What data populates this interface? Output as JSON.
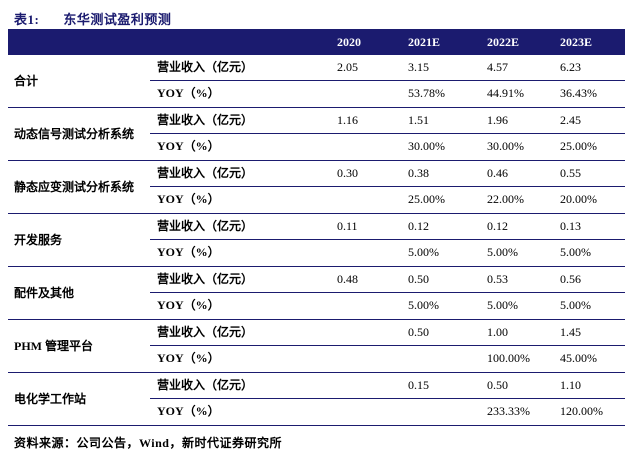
{
  "title": {
    "label": "表1:",
    "text": "东华测试盈利预测"
  },
  "table": {
    "columns": [
      "2020",
      "2021E",
      "2022E",
      "2023E"
    ],
    "groups": [
      {
        "category": "合计",
        "rows": [
          {
            "metric": "营业收入（亿元）",
            "values": [
              "2.05",
              "3.15",
              "4.57",
              "6.23"
            ]
          },
          {
            "metric": "YOY（%）",
            "values": [
              "",
              "53.78%",
              "44.91%",
              "36.43%"
            ]
          }
        ]
      },
      {
        "category": "动态信号测试分析系统",
        "rows": [
          {
            "metric": "营业收入（亿元）",
            "values": [
              "1.16",
              "1.51",
              "1.96",
              "2.45"
            ]
          },
          {
            "metric": "YOY（%）",
            "values": [
              "",
              "30.00%",
              "30.00%",
              "25.00%"
            ]
          }
        ]
      },
      {
        "category": "静态应变测试分析系统",
        "rows": [
          {
            "metric": "营业收入（亿元）",
            "values": [
              "0.30",
              "0.38",
              "0.46",
              "0.55"
            ]
          },
          {
            "metric": "YOY（%）",
            "values": [
              "",
              "25.00%",
              "22.00%",
              "20.00%"
            ]
          }
        ]
      },
      {
        "category": "开发服务",
        "rows": [
          {
            "metric": "营业收入（亿元）",
            "values": [
              "0.11",
              "0.12",
              "0.12",
              "0.13"
            ]
          },
          {
            "metric": "YOY（%）",
            "values": [
              "",
              "5.00%",
              "5.00%",
              "5.00%"
            ]
          }
        ]
      },
      {
        "category": "配件及其他",
        "rows": [
          {
            "metric": "营业收入（亿元）",
            "values": [
              "0.48",
              "0.50",
              "0.53",
              "0.56"
            ]
          },
          {
            "metric": "YOY（%）",
            "values": [
              "",
              "5.00%",
              "5.00%",
              "5.00%"
            ]
          }
        ]
      },
      {
        "category": "PHM 管理平台",
        "rows": [
          {
            "metric": "营业收入（亿元）",
            "values": [
              "",
              "0.50",
              "1.00",
              "1.45"
            ]
          },
          {
            "metric": "YOY（%）",
            "values": [
              "",
              "",
              "100.00%",
              "45.00%"
            ]
          }
        ]
      },
      {
        "category": "电化学工作站",
        "rows": [
          {
            "metric": "营业收入（亿元）",
            "values": [
              "",
              "0.15",
              "0.50",
              "1.10"
            ]
          },
          {
            "metric": "YOY（%）",
            "values": [
              "",
              "",
              "233.33%",
              "120.00%"
            ]
          }
        ]
      }
    ]
  },
  "footer": {
    "text": "资料来源：公司公告，Wind，新时代证券研究所"
  },
  "colors": {
    "navy": "#1b1b6f",
    "header_text": "#ffffff",
    "body_text": "#000000"
  }
}
